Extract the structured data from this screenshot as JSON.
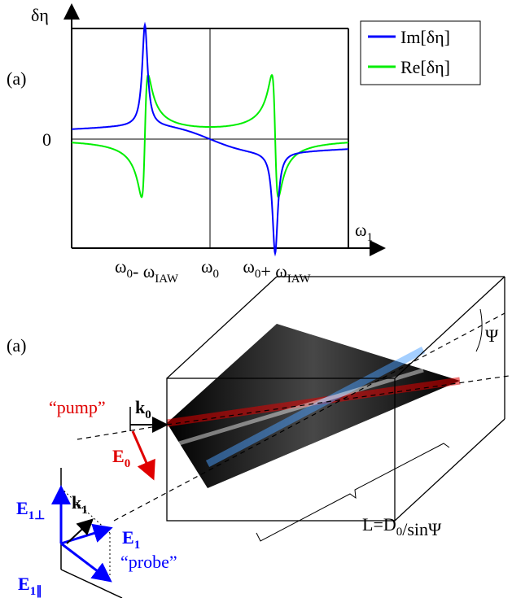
{
  "plot": {
    "panel_label": "(a)",
    "y_axis_label": "δη",
    "zero_label": "0",
    "x_axis_label": [
      [
        "ω",
        "1"
      ]
    ],
    "legend": [
      {
        "name": "Im[δη]",
        "color": "#0000ff"
      },
      {
        "name": "Re[δη]",
        "color": "#00ee00"
      }
    ],
    "x_labels": [
      [
        [
          "ω",
          "0"
        ],
        [
          "- ω",
          "IAW"
        ]
      ],
      [
        [
          "ω",
          "0"
        ]
      ],
      [
        [
          "ω",
          "0"
        ],
        [
          "+ ω",
          "IAW"
        ]
      ]
    ]
  },
  "diagram": {
    "panel_label": "(a)",
    "pump": "“pump”",
    "k0": [
      [
        "k",
        "0"
      ]
    ],
    "E0": [
      [
        "E",
        "0"
      ]
    ],
    "k1": [
      [
        "k",
        "1"
      ]
    ],
    "E1": [
      [
        "E",
        "1"
      ]
    ],
    "E1_perp": [
      [
        "E",
        "1⊥"
      ]
    ],
    "E1_par": [
      [
        "E",
        "1∥"
      ]
    ],
    "probe": "“probe”",
    "length": [
      [
        "L=D",
        "0"
      ],
      [
        "/sinΨ"
      ]
    ],
    "angle": "Ψ"
  }
}
